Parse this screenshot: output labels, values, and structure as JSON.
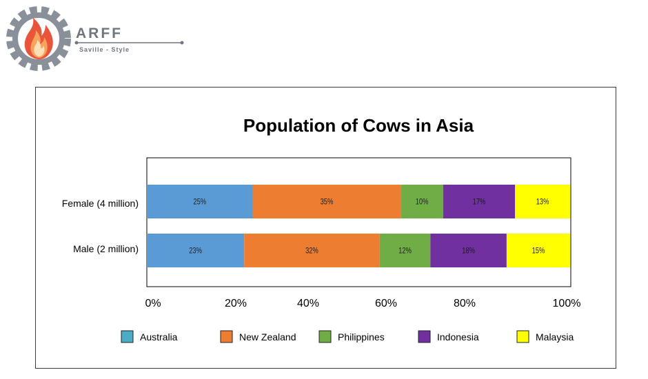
{
  "logo": {
    "name": "ARFF",
    "tagline": "Saville - Style"
  },
  "chart_data": {
    "type": "bar",
    "orientation": "horizontal",
    "stacked": "percent",
    "title": "Population of Cows in Asia",
    "categories": [
      "Female (4 million)",
      "Male (2 million)"
    ],
    "series": [
      {
        "name": "Australia",
        "color": "#5b9bd5",
        "values": [
          25,
          23
        ],
        "labels": [
          "25%",
          "23%"
        ]
      },
      {
        "name": "New Zealand",
        "color": "#ed7d31",
        "values": [
          35,
          32
        ],
        "labels": [
          "35%",
          "32%"
        ]
      },
      {
        "name": "Philippines",
        "color": "#70ad47",
        "values": [
          10,
          12
        ],
        "labels": [
          "10%",
          "12%"
        ]
      },
      {
        "name": "Indonesia",
        "color": "#7030a0",
        "values": [
          17,
          18
        ],
        "labels": [
          "17%",
          "18%"
        ]
      },
      {
        "name": "Malaysia",
        "color": "#ffff00",
        "values": [
          13,
          15
        ],
        "labels": [
          "13%",
          "15%"
        ]
      }
    ],
    "x_ticks": [
      "0%",
      "20%",
      "40%",
      "60%",
      "80%",
      "100%"
    ],
    "xlim": [
      0,
      100
    ],
    "grid": false,
    "legend_position": "bottom",
    "legend_swatch_colors": [
      "#4bacc6",
      "#ed7d31",
      "#70ad47",
      "#7030a0",
      "#ffff00"
    ]
  }
}
